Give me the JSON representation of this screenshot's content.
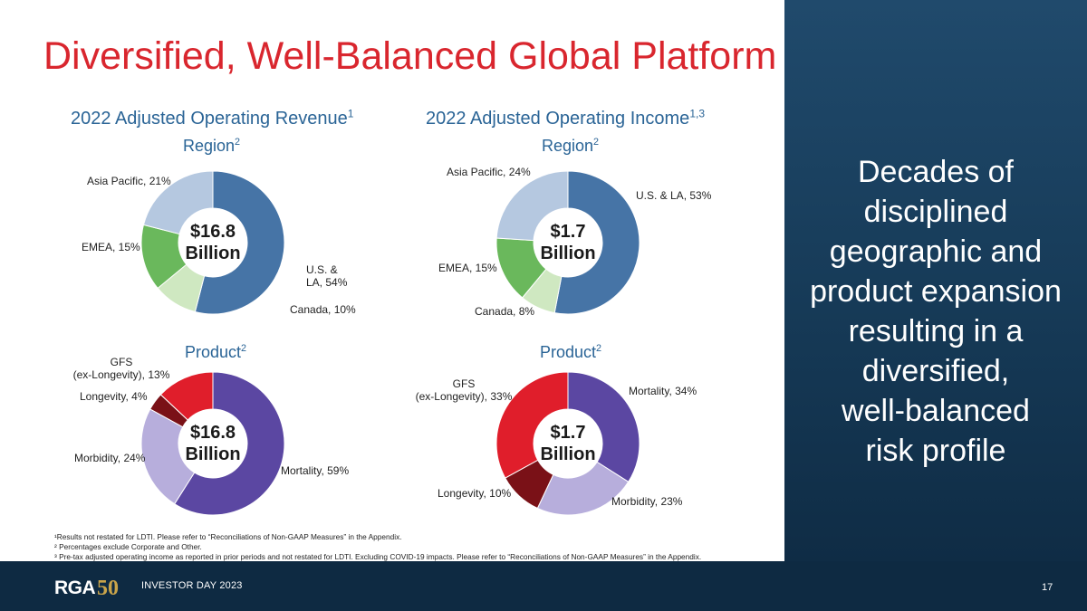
{
  "title": "Diversified, Well-Balanced Global Platform",
  "tagline": [
    "Decades of",
    "disciplined",
    "geographic and",
    "product expansion",
    "resulting in a",
    "diversified,",
    "well-balanced",
    "risk profile"
  ],
  "footnotes": [
    "¹Results not restated for LDTI. Please refer to “Reconciliations of Non-GAAP Measures” in the Appendix.",
    "² Percentages exclude Corporate and Other.",
    "³ Pre-tax adjusted operating income as reported in prior periods and not restated for LDTI. Excluding COVID-19 impacts. Please refer to “Reconciliations of Non-GAAP Measures” in the Appendix."
  ],
  "footer": {
    "logo_text": "RGA50",
    "event": "INVESTOR DAY 2023",
    "page": "17"
  },
  "colors": {
    "title": "#d9262e",
    "heading": "#2a6496",
    "us": "#4674a6",
    "canada": "#cfe8c1",
    "emea": "#6ab85c",
    "asia": "#b5c8e0",
    "mortality": "#5b47a2",
    "morbidity": "#b7aedc",
    "longevity": "#7a1117",
    "gfs": "#e01e2b"
  },
  "chart_data": [
    {
      "type": "pie",
      "title": "2022 Adjusted Operating Revenue",
      "title_sup": "1",
      "subtitle": "Region",
      "subtitle_sup": "2",
      "center_label": [
        "$16.8",
        "Billion"
      ],
      "slices": [
        {
          "label": "U.S. & LA",
          "value": 54,
          "display": [
            "U.S. &",
            "LA, 54%"
          ],
          "color": "#4674a6"
        },
        {
          "label": "Canada",
          "value": 10,
          "display": [
            "Canada, 10%"
          ],
          "color": "#cfe8c1"
        },
        {
          "label": "EMEA",
          "value": 15,
          "display": [
            "EMEA, 15%"
          ],
          "color": "#6ab85c"
        },
        {
          "label": "Asia Pacific",
          "value": 21,
          "display": [
            "Asia Pacific, 21%"
          ],
          "color": "#b5c8e0"
        }
      ]
    },
    {
      "type": "pie",
      "title": "2022 Adjusted Operating Income",
      "title_sup": "1,3",
      "subtitle": "Region",
      "subtitle_sup": "2",
      "center_label": [
        "$1.7",
        "Billion"
      ],
      "slices": [
        {
          "label": "U.S. & LA",
          "value": 53,
          "display": [
            "U.S. & LA, 53%"
          ],
          "color": "#4674a6"
        },
        {
          "label": "Canada",
          "value": 8,
          "display": [
            "Canada, 8%"
          ],
          "color": "#cfe8c1"
        },
        {
          "label": "EMEA",
          "value": 15,
          "display": [
            "EMEA, 15%"
          ],
          "color": "#6ab85c"
        },
        {
          "label": "Asia Pacific",
          "value": 24,
          "display": [
            "Asia Pacific, 24%"
          ],
          "color": "#b5c8e0"
        }
      ]
    },
    {
      "type": "pie",
      "subtitle": "Product",
      "subtitle_sup": "2",
      "center_label": [
        "$16.8",
        "Billion"
      ],
      "slices": [
        {
          "label": "Mortality",
          "value": 59,
          "display": [
            "Mortality, 59%"
          ],
          "color": "#5b47a2"
        },
        {
          "label": "Morbidity",
          "value": 24,
          "display": [
            "Morbidity, 24%"
          ],
          "color": "#b7aedc"
        },
        {
          "label": "Longevity",
          "value": 4,
          "display": [
            "Longevity, 4%"
          ],
          "color": "#7a1117"
        },
        {
          "label": "GFS (ex-Longevity)",
          "value": 13,
          "display": [
            "GFS",
            "(ex-Longevity), 13%"
          ],
          "color": "#e01e2b"
        }
      ]
    },
    {
      "type": "pie",
      "subtitle": "Product",
      "subtitle_sup": "2",
      "center_label": [
        "$1.7",
        "Billion"
      ],
      "slices": [
        {
          "label": "Mortality",
          "value": 34,
          "display": [
            "Mortality, 34%"
          ],
          "color": "#5b47a2"
        },
        {
          "label": "Morbidity",
          "value": 23,
          "display": [
            "Morbidity, 23%"
          ],
          "color": "#b7aedc"
        },
        {
          "label": "Longevity",
          "value": 10,
          "display": [
            "Longevity, 10%"
          ],
          "color": "#7a1117"
        },
        {
          "label": "GFS (ex-Longevity)",
          "value": 33,
          "display": [
            "GFS",
            "(ex-Longevity), 33%"
          ],
          "color": "#e01e2b"
        }
      ]
    }
  ]
}
